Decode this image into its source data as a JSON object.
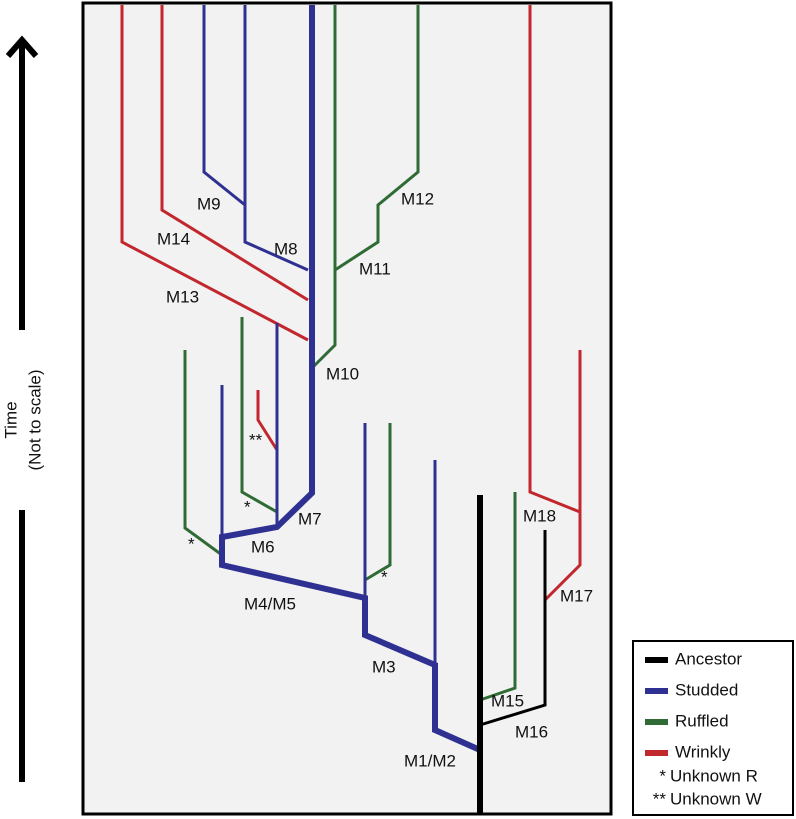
{
  "axis": {
    "title": "Time",
    "subtitle": "(Not to scale)"
  },
  "labels": [
    "M1/M2",
    "M3",
    "M4/M5",
    "M6",
    "M7",
    "M8",
    "M9",
    "M10",
    "M11",
    "M12",
    "M13",
    "M14",
    "M15",
    "M16",
    "M17",
    "M18",
    "*",
    "*",
    "*",
    "**"
  ],
  "legend": {
    "items": [
      {
        "label": "Ancestor",
        "color": "#000000"
      },
      {
        "label": "Studded",
        "color": "#2e3192"
      },
      {
        "label": "Ruffled",
        "color": "#2f6b34"
      },
      {
        "label": "Wrinkly",
        "color": "#c1272d"
      }
    ],
    "notes": [
      {
        "symbol": "*",
        "text": "Unknown R"
      },
      {
        "symbol": "**",
        "text": "Unknown W"
      }
    ]
  }
}
